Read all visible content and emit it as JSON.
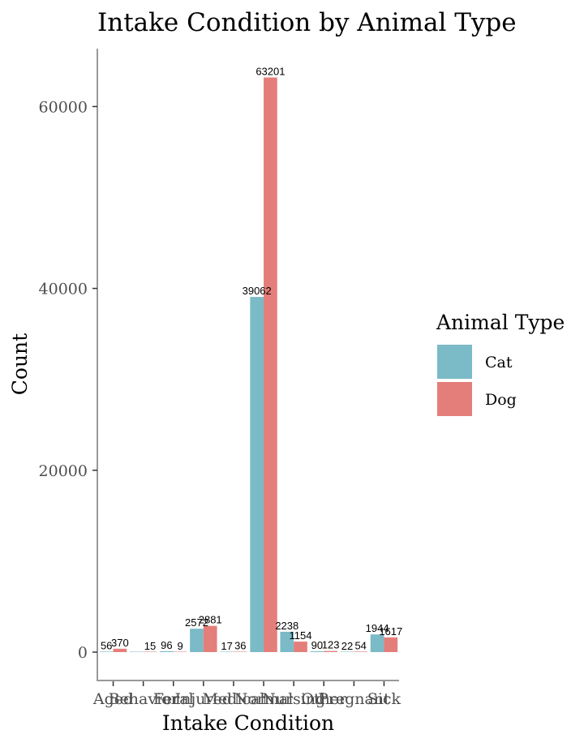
{
  "chart_data": {
    "type": "bar",
    "title": "Intake Condition by Animal Type",
    "xlabel": "Intake Condition",
    "ylabel": "Count",
    "categories": [
      "Aged",
      "Behavior",
      "Feral",
      "Injured",
      "Medical",
      "Normal",
      "Nursing",
      "Other",
      "Pregnant",
      "Sick"
    ],
    "series": [
      {
        "name": "Cat",
        "color": "#7BBAC7",
        "values": [
          56,
          0,
          96,
          2572,
          17,
          39062,
          2238,
          90,
          22,
          1944
        ],
        "labels": [
          "56",
          "",
          "96",
          "2572",
          "17",
          "39062",
          "2238",
          "90",
          "22",
          "1944"
        ]
      },
      {
        "name": "Dog",
        "color": "#E47E7A",
        "values": [
          370,
          15,
          9,
          2881,
          36,
          63201,
          1154,
          123,
          54,
          1617
        ],
        "labels": [
          "370",
          "15",
          "9",
          "2881",
          "36",
          "63201",
          "1154",
          "123",
          "54",
          "1617"
        ]
      }
    ],
    "y_ticks": [
      0,
      20000,
      40000,
      60000
    ],
    "ylim": [
      0,
      66000
    ],
    "legend": {
      "title": "Animal Type",
      "position": "right"
    },
    "grid": false
  }
}
